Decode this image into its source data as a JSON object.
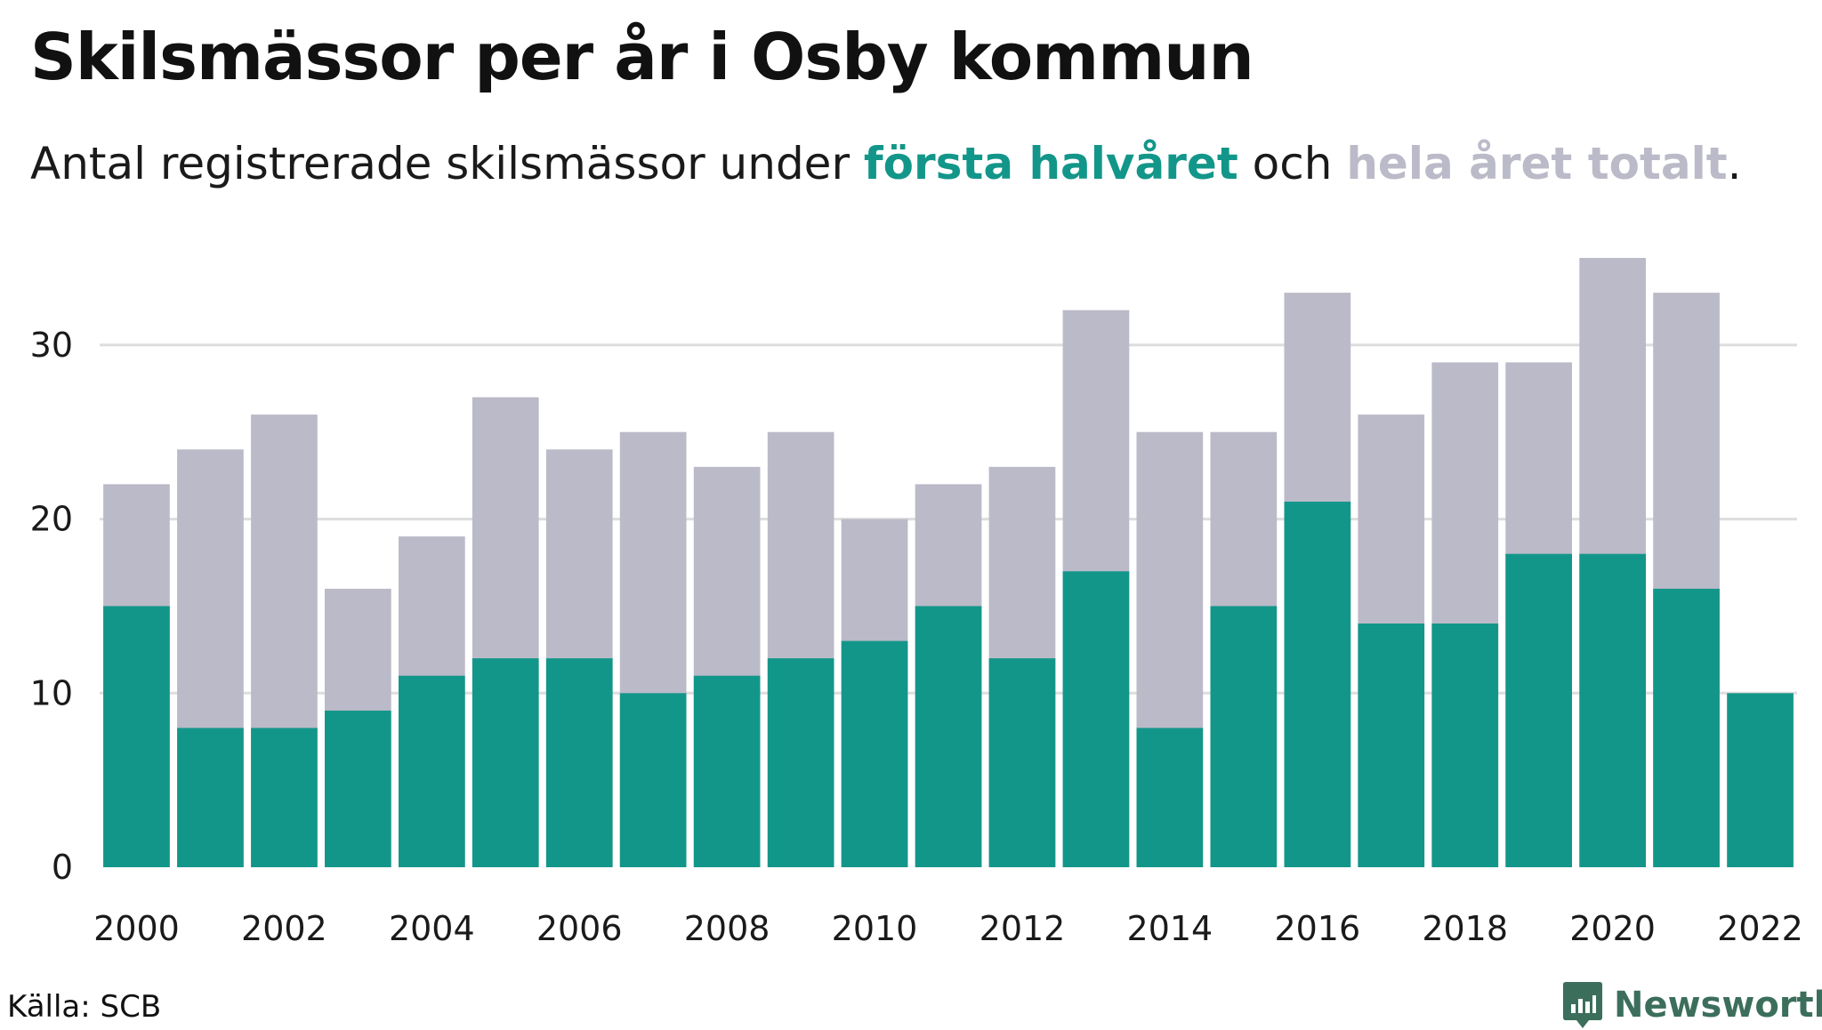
{
  "header": {
    "title": "Skilsmässor per år i Osby kommun",
    "subtitle_start": "Antal registrerade skilsmässor under ",
    "subtitle_half": "första halvåret",
    "subtitle_middle": " och ",
    "subtitle_total": "hela året totalt",
    "subtitle_end": "."
  },
  "footer": {
    "source": "Källa: SCB",
    "brand": "Newsworthy"
  },
  "colors": {
    "first_half": "#13968a",
    "full_year": "#bbbac8",
    "grid": "#dddddd",
    "brand": "#3c6e5c",
    "text": "#1a1a1a"
  },
  "icons": {
    "brand_logo": "newsworthy-logo-icon"
  },
  "chart_data": {
    "type": "bar",
    "stacked": "overlay",
    "title": "Skilsmässor per år i Osby kommun",
    "subtitle": "Antal registrerade skilsmässor under första halvåret och hela året totalt.",
    "x": [
      2000,
      2001,
      2002,
      2003,
      2004,
      2005,
      2006,
      2007,
      2008,
      2009,
      2010,
      2011,
      2012,
      2013,
      2014,
      2015,
      2016,
      2017,
      2018,
      2019,
      2020,
      2021,
      2022
    ],
    "x_tick_labels": [
      "2000",
      "2002",
      "2004",
      "2006",
      "2008",
      "2010",
      "2012",
      "2014",
      "2016",
      "2018",
      "2020",
      "2022"
    ],
    "series": [
      {
        "name": "hela året totalt",
        "color": "#bbbac8",
        "values": [
          22,
          24,
          26,
          16,
          19,
          27,
          24,
          25,
          23,
          25,
          20,
          22,
          23,
          32,
          25,
          25,
          33,
          26,
          29,
          29,
          35,
          33,
          null
        ]
      },
      {
        "name": "första halvåret",
        "color": "#13968a",
        "values": [
          15,
          8,
          8,
          9,
          11,
          12,
          12,
          10,
          11,
          12,
          13,
          15,
          12,
          17,
          8,
          15,
          21,
          14,
          14,
          18,
          18,
          16,
          10
        ]
      }
    ],
    "y_ticks": [
      0,
      10,
      20,
      30
    ],
    "ylim": [
      0,
      35
    ],
    "grid": true,
    "legend": "in subtitle",
    "xlabel": "",
    "ylabel": ""
  }
}
